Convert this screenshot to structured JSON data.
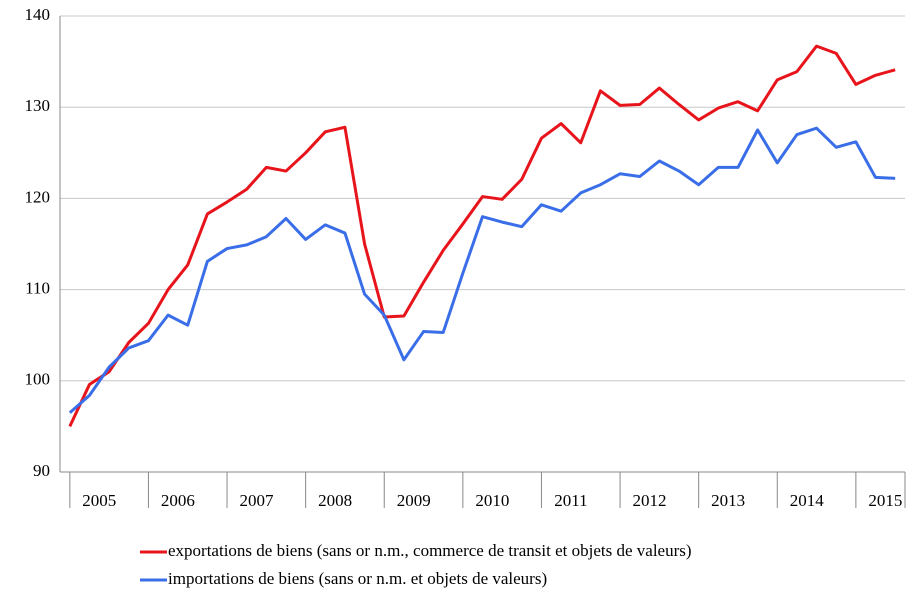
{
  "chart_data": {
    "type": "line",
    "categories": [
      "2005",
      null,
      null,
      null,
      "2006",
      null,
      null,
      null,
      "2007",
      null,
      null,
      null,
      "2008",
      null,
      null,
      null,
      "2009",
      null,
      null,
      null,
      "2010",
      null,
      null,
      null,
      "2011",
      null,
      null,
      null,
      "2012",
      null,
      null,
      null,
      "2013",
      null,
      null,
      null,
      "2014",
      null,
      null,
      null,
      "2015",
      null,
      null
    ],
    "series": [
      {
        "name": "exportations de biens (sans or n.m., commerce de transit et objets de valeurs)",
        "color": "#e8141b",
        "values": [
          95,
          99.6,
          101,
          104.2,
          106.3,
          110,
          112.7,
          118.3,
          119.6,
          121,
          123.4,
          123,
          125,
          127.3,
          127.8,
          115,
          107,
          107.1,
          110.8,
          114.3,
          117.2,
          120.2,
          119.9,
          122.1,
          126.6,
          128.2,
          126.1,
          131.8,
          130.2,
          130.3,
          132.1,
          130.3,
          128.6,
          129.9,
          130.6,
          129.6,
          133,
          133.9,
          136.7,
          135.9,
          132.5,
          133.5,
          134.1
        ]
      },
      {
        "name": "importations de biens (sans or n.m. et objets de valeurs)",
        "color": "#3a6ee8",
        "values": [
          96.5,
          98.4,
          101.5,
          103.6,
          104.4,
          107.2,
          106.1,
          113.1,
          114.5,
          114.9,
          115.8,
          117.8,
          115.5,
          117.1,
          116.2,
          109.5,
          107.2,
          102.3,
          105.4,
          105.3,
          111.8,
          118,
          117.4,
          116.9,
          119.3,
          118.6,
          120.6,
          121.5,
          122.7,
          122.4,
          124.1,
          123,
          121.5,
          123.4,
          123.4,
          127.5,
          123.9,
          127,
          127.7,
          125.6,
          126.2,
          122.3,
          122.2
        ]
      }
    ],
    "ylim": [
      90,
      140
    ],
    "yticks": [
      90,
      100,
      110,
      120,
      130,
      140
    ],
    "grid": true,
    "legend": "bottom"
  }
}
